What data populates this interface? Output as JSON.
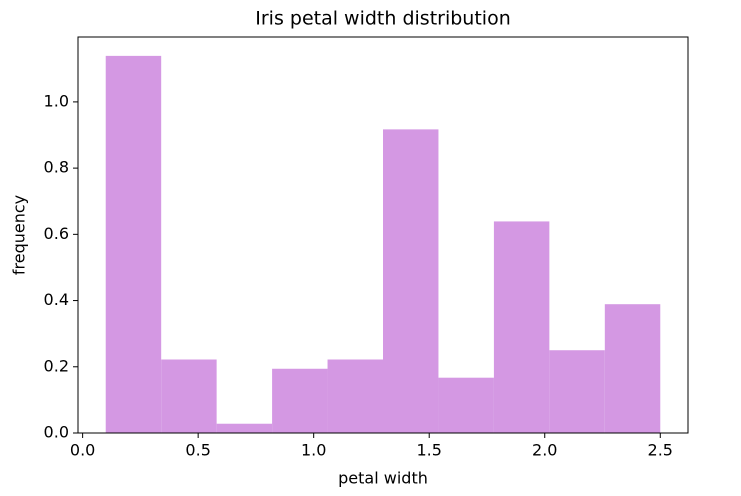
{
  "chart_data": {
    "type": "histogram",
    "title": "Iris petal width distribution",
    "x_label": "petal width",
    "y_label": "frequency",
    "bins": [
      0.1,
      0.34,
      0.58,
      0.82,
      1.06,
      1.3,
      1.54,
      1.78,
      2.02,
      2.26,
      2.5
    ],
    "values": [
      1.139,
      0.222,
      0.028,
      0.194,
      0.222,
      0.917,
      0.167,
      0.639,
      0.25,
      0.389
    ],
    "color": "#d498e3",
    "xlim": [
      -0.02,
      2.62
    ],
    "xticks": [
      {
        "value": 0,
        "label": "0.0"
      },
      {
        "value": 0.5,
        "label": "0.5"
      },
      {
        "value": 1,
        "label": "1.0"
      },
      {
        "value": 1.5,
        "label": "1.5"
      },
      {
        "value": 2,
        "label": "2.0"
      },
      {
        "value": 2.5,
        "label": "2.5"
      }
    ],
    "ylim": [
      0,
      1.196
    ],
    "yticks": [
      {
        "value": 0,
        "label": "0.0"
      },
      {
        "value": 0.2,
        "label": "0.2"
      },
      {
        "value": 0.4,
        "label": "0.4"
      },
      {
        "value": 0.6,
        "label": "0.6"
      },
      {
        "value": 0.8,
        "label": "0.8"
      },
      {
        "value": 1,
        "label": "1.0"
      }
    ]
  }
}
